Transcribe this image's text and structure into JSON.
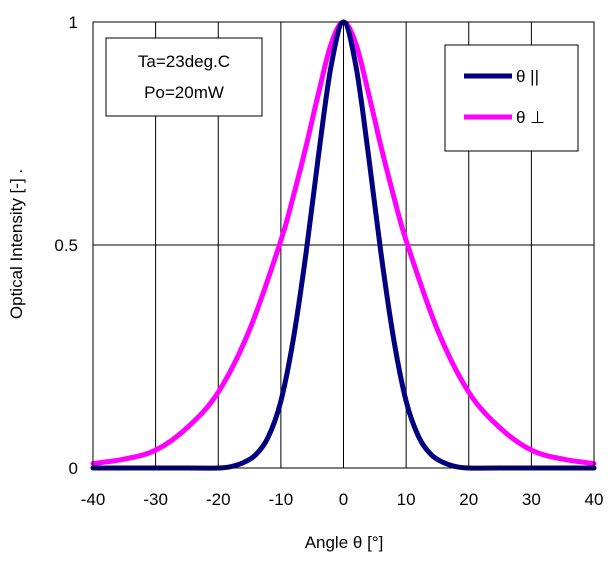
{
  "chart_data": {
    "type": "line",
    "xlabel": "Angle θ [°]",
    "ylabel": "Optical Intensity [-] .",
    "xlim": [
      -40,
      40
    ],
    "ylim": [
      0,
      1
    ],
    "x_ticks": [
      -40,
      -30,
      -20,
      -10,
      0,
      10,
      20,
      30,
      40
    ],
    "y_ticks": [
      0,
      0.5,
      1
    ],
    "y_tick_labels": [
      "0",
      "0.5",
      "1"
    ],
    "grid": "vertical and horizontal at major ticks",
    "annotation": [
      "Ta=23deg.C",
      "Po=20mW"
    ],
    "legend_position": "top-right",
    "series": [
      {
        "name": "θ ||",
        "color": "#000080",
        "x": [
          -40,
          -25,
          -20,
          -18,
          -16,
          -14,
          -12,
          -10,
          -8,
          -6,
          -4,
          -2,
          0,
          2,
          4,
          6,
          8,
          10,
          12,
          14,
          16,
          18,
          20,
          25,
          40
        ],
        "y": [
          0,
          0,
          0,
          0.003,
          0.012,
          0.03,
          0.07,
          0.15,
          0.29,
          0.48,
          0.7,
          0.9,
          1.0,
          0.9,
          0.7,
          0.48,
          0.29,
          0.15,
          0.07,
          0.03,
          0.012,
          0.003,
          0,
          0,
          0
        ]
      },
      {
        "name": "θ ⊥",
        "color": "#ff00ff",
        "x": [
          -40,
          -35,
          -30,
          -25,
          -20,
          -15,
          -10,
          -8,
          -6,
          -4,
          -2,
          0,
          2,
          4,
          6,
          8,
          10,
          15,
          20,
          25,
          30,
          35,
          40
        ],
        "y": [
          0.01,
          0.02,
          0.04,
          0.09,
          0.17,
          0.31,
          0.51,
          0.61,
          0.72,
          0.84,
          0.95,
          1.0,
          0.95,
          0.84,
          0.72,
          0.61,
          0.51,
          0.31,
          0.17,
          0.09,
          0.04,
          0.02,
          0.01
        ]
      }
    ]
  }
}
